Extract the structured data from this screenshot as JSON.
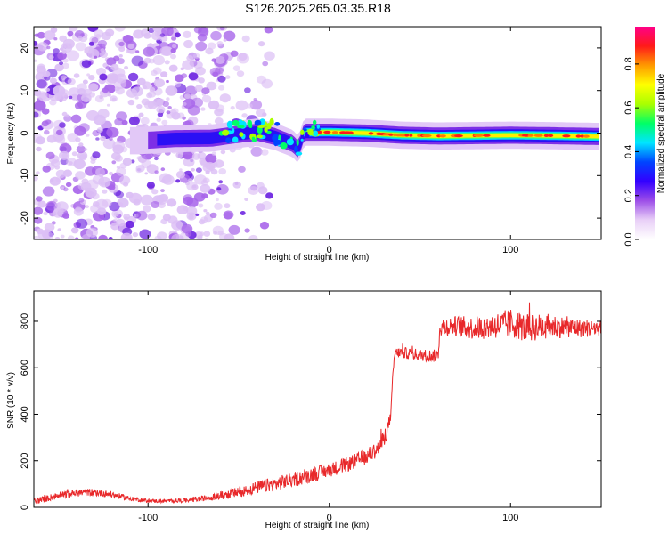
{
  "title": "S126.2025.265.03.35.R18",
  "chart_data": [
    {
      "type": "heatmap",
      "xlabel": "Height of straight line (km)",
      "ylabel": "Frequency (Hz)",
      "xlim": [
        -163,
        150
      ],
      "ylim": [
        -25,
        25
      ],
      "x_ticks": [
        -100,
        0,
        100
      ],
      "y_ticks": [
        -20,
        -10,
        0,
        10,
        20
      ],
      "colorbar": {
        "label": "Normalized spectral amplitude",
        "range": [
          0,
          0.97
        ],
        "ticks": [
          "0.0",
          "0.2",
          "0.4",
          "0.6",
          "0.8"
        ],
        "tick_values": [
          0.0,
          0.2,
          0.4,
          0.6,
          0.8
        ],
        "colors": [
          "#ffffff",
          "#e9d0f7",
          "#9d4ee8",
          "#3300ff",
          "#0044ff",
          "#00e5ff",
          "#00ff66",
          "#aaff00",
          "#ffff00",
          "#ff9900",
          "#ff1a1a",
          "#ff0088"
        ]
      },
      "signal_track": [
        {
          "x": -105,
          "y": -1.8
        },
        {
          "x": -85,
          "y": -1.3
        },
        {
          "x": -65,
          "y": -1.2
        },
        {
          "x": -50,
          "y": -0.3
        },
        {
          "x": -40,
          "y": 0.2
        },
        {
          "x": -30,
          "y": -0.8
        },
        {
          "x": -20,
          "y": -2.5
        },
        {
          "x": -17,
          "y": -4.0
        },
        {
          "x": -14,
          "y": 0.2
        },
        {
          "x": 0,
          "y": 0.2
        },
        {
          "x": 20,
          "y": 0.0
        },
        {
          "x": 40,
          "y": -0.5
        },
        {
          "x": 60,
          "y": -0.7
        },
        {
          "x": 80,
          "y": -0.6
        },
        {
          "x": 100,
          "y": -0.5
        },
        {
          "x": 120,
          "y": -0.6
        },
        {
          "x": 148,
          "y": -0.8
        }
      ],
      "noise_region_x": [
        -163,
        -58
      ]
    },
    {
      "type": "line",
      "xlabel": "Height of straight line (km)",
      "ylabel": "SNR (10 * v/v)",
      "xlim": [
        -163,
        150
      ],
      "ylim": [
        0,
        930
      ],
      "x_ticks": [
        -100,
        0,
        100
      ],
      "y_ticks": [
        0,
        200,
        400,
        600,
        800
      ],
      "color": "#e8282a",
      "series": [
        {
          "name": "SNR",
          "x": [
            -163,
            -150,
            -140,
            -130,
            -120,
            -110,
            -100,
            -90,
            -80,
            -70,
            -60,
            -50,
            -40,
            -30,
            -20,
            -10,
            0,
            10,
            20,
            28,
            32,
            34,
            35,
            36,
            37,
            40,
            50,
            60,
            61,
            70,
            80,
            90,
            100,
            110,
            120,
            130,
            140,
            150
          ],
          "values": [
            25,
            50,
            62,
            65,
            55,
            38,
            28,
            27,
            30,
            38,
            50,
            65,
            85,
            100,
            120,
            140,
            160,
            185,
            215,
            260,
            330,
            400,
            560,
            655,
            665,
            665,
            655,
            650,
            775,
            780,
            770,
            780,
            790,
            770,
            780,
            775,
            770,
            770
          ],
          "noise_amplitude": [
            14,
            15,
            16,
            16,
            14,
            10,
            8,
            8,
            10,
            12,
            18,
            22,
            28,
            30,
            32,
            34,
            30,
            32,
            34,
            36,
            36,
            20,
            20,
            22,
            22,
            24,
            26,
            28,
            40,
            45,
            50,
            55,
            65,
            60,
            55,
            45,
            40,
            35
          ]
        }
      ]
    }
  ]
}
